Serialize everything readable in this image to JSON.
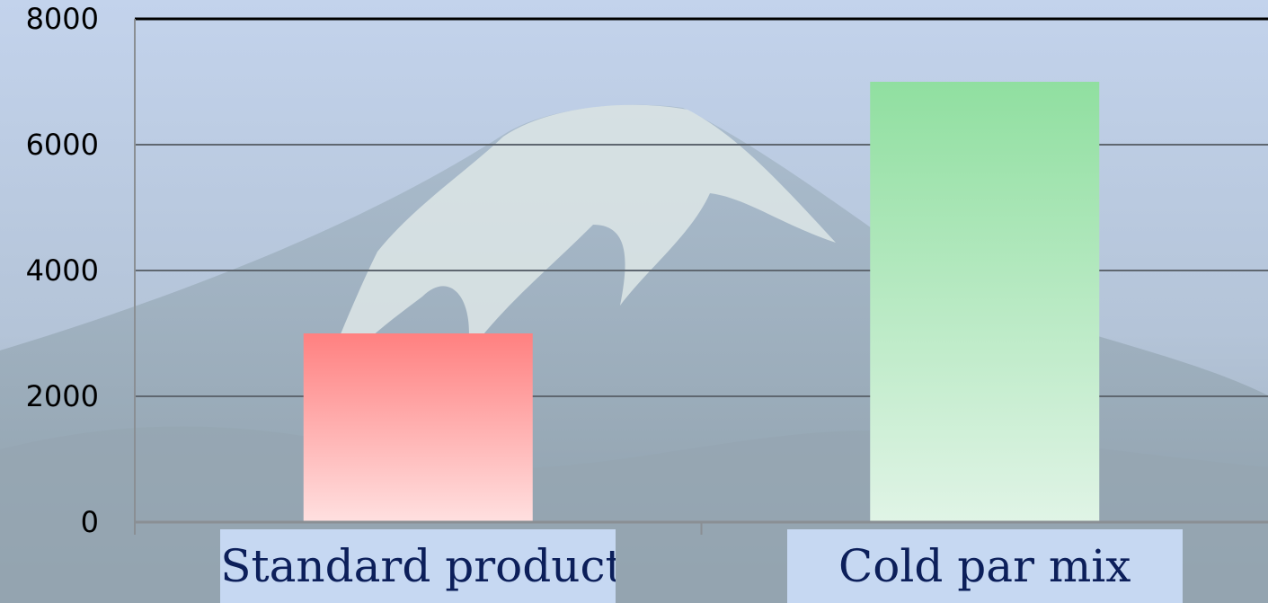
{
  "chart_data": {
    "type": "bar",
    "categories": [
      "Standard product",
      "Cold par mix"
    ],
    "values": [
      3000,
      7000
    ],
    "ylim": [
      0,
      8000
    ],
    "yticks": [
      "0",
      "2000",
      "4000",
      "6000",
      "8000"
    ],
    "grid": true,
    "legend": "none",
    "title": "",
    "xlabel": "",
    "ylabel": "",
    "colors": {
      "bar_top": [
        "#ff8080",
        "#90dfa0"
      ],
      "bar_bottom": [
        "#ffe0e0",
        "#e0f4e6"
      ],
      "category_box": "#c6d8f2",
      "category_text": "#0c1f5a",
      "gridline": "#5f6770",
      "axis": "#8a8f94",
      "top_border": "#000000"
    }
  }
}
